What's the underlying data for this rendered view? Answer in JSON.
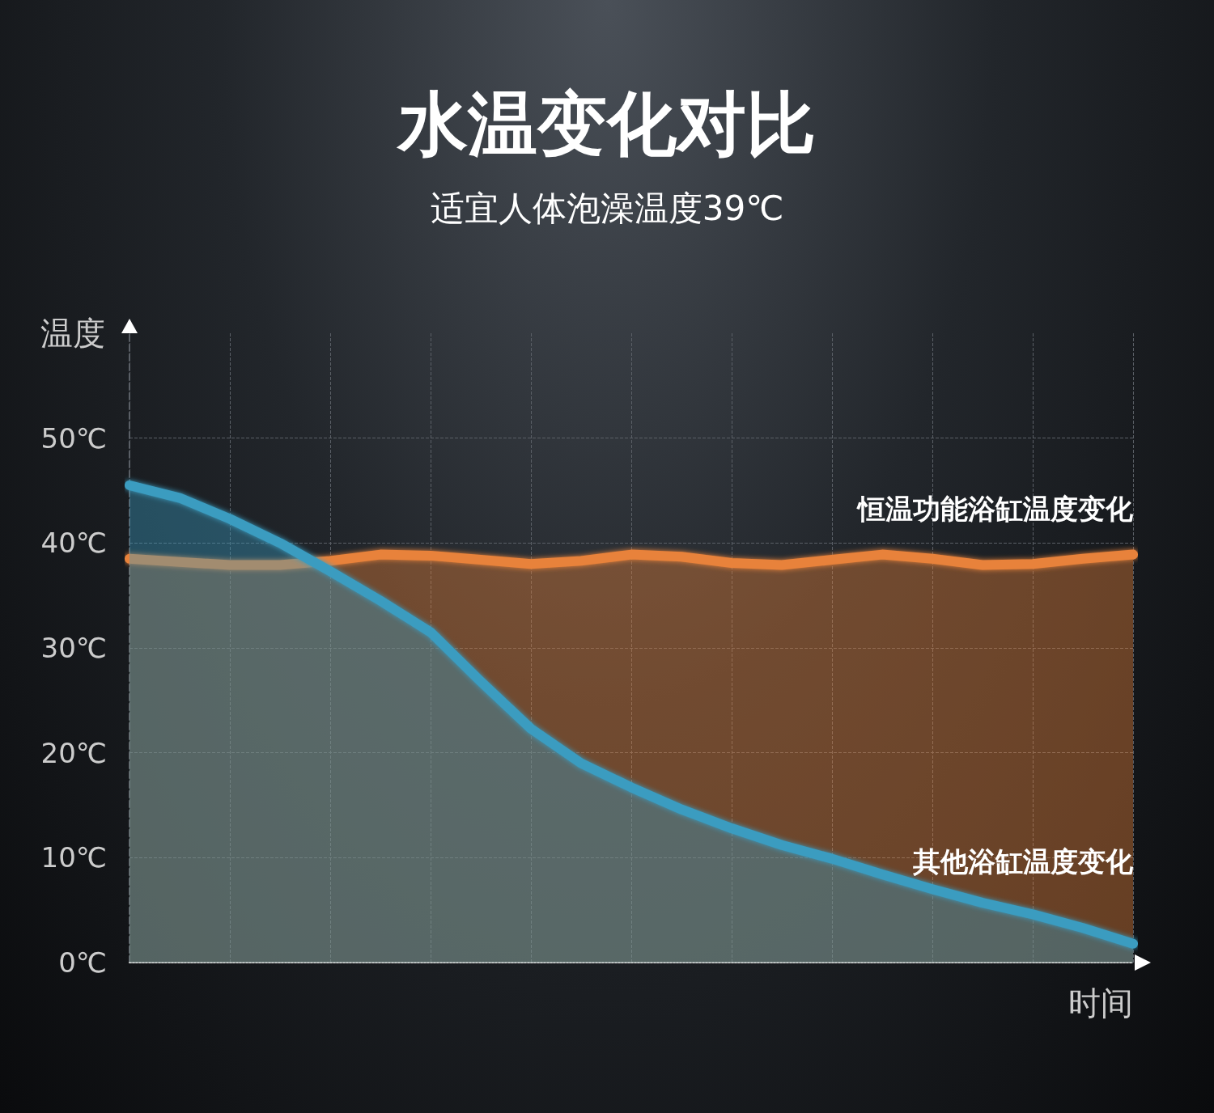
{
  "chart_data": {
    "type": "area",
    "title": "水温变化对比",
    "subtitle": "适宜人体泡澡温度39℃",
    "ylabel": "温度",
    "xlabel": "时间",
    "categories": [
      null,
      null,
      null,
      null,
      null,
      null,
      null,
      null,
      null,
      null,
      null,
      null,
      null,
      null,
      null,
      null,
      null,
      null,
      null,
      null,
      null
    ],
    "series": [
      {
        "name": "恒温功能浴缸温度变化",
        "color": "#e8823a",
        "values": [
          38.5,
          38.2,
          37.9,
          37.9,
          38.3,
          38.9,
          38.8,
          38.4,
          38.0,
          38.3,
          38.9,
          38.7,
          38.1,
          37.9,
          38.4,
          38.9,
          38.5,
          37.9,
          38.0,
          38.5,
          38.9
        ]
      },
      {
        "name": "其他浴缸温度变化",
        "color": "#3a9cc0",
        "values": [
          45.5,
          44.3,
          42.3,
          40,
          37.3,
          34.5,
          31.5,
          26.8,
          22.3,
          19,
          16.7,
          14.6,
          12.8,
          11.2,
          9.9,
          8.4,
          7,
          5.7,
          4.6,
          3.3,
          1.8
        ]
      }
    ],
    "ylim": [
      0,
      60
    ],
    "yticks": [
      {
        "value": 0,
        "label": "0℃"
      },
      {
        "value": 10,
        "label": "10℃"
      },
      {
        "value": 20,
        "label": "20℃"
      },
      {
        "value": 30,
        "label": "30℃"
      },
      {
        "value": 40,
        "label": "40℃"
      },
      {
        "value": 50,
        "label": "50℃"
      }
    ],
    "grid": true,
    "legend": false,
    "marker": "none",
    "line_style": "solid"
  }
}
